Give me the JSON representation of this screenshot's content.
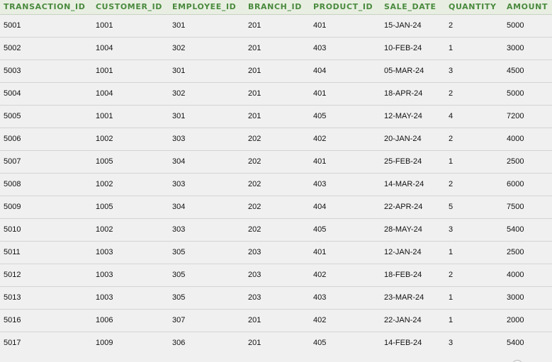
{
  "table": {
    "columns": [
      "TRANSACTION_ID",
      "CUSTOMER_ID",
      "EMPLOYEE_ID",
      "BRANCH_ID",
      "PRODUCT_ID",
      "SALE_DATE",
      "QUANTITY",
      "AMOUNT"
    ],
    "rows": [
      [
        "5001",
        "1001",
        "301",
        "201",
        "401",
        "15-JAN-24",
        "2",
        "5000"
      ],
      [
        "5002",
        "1004",
        "302",
        "201",
        "403",
        "10-FEB-24",
        "1",
        "3000"
      ],
      [
        "5003",
        "1001",
        "301",
        "201",
        "404",
        "05-MAR-24",
        "3",
        "4500"
      ],
      [
        "5004",
        "1004",
        "302",
        "201",
        "401",
        "18-APR-24",
        "2",
        "5000"
      ],
      [
        "5005",
        "1001",
        "301",
        "201",
        "405",
        "12-MAY-24",
        "4",
        "7200"
      ],
      [
        "5006",
        "1002",
        "303",
        "202",
        "402",
        "20-JAN-24",
        "2",
        "4000"
      ],
      [
        "5007",
        "1005",
        "304",
        "202",
        "401",
        "25-FEB-24",
        "1",
        "2500"
      ],
      [
        "5008",
        "1002",
        "303",
        "202",
        "403",
        "14-MAR-24",
        "2",
        "6000"
      ],
      [
        "5009",
        "1005",
        "304",
        "202",
        "404",
        "22-APR-24",
        "5",
        "7500"
      ],
      [
        "5010",
        "1002",
        "303",
        "202",
        "405",
        "28-MAY-24",
        "3",
        "5400"
      ],
      [
        "5011",
        "1003",
        "305",
        "203",
        "401",
        "12-JAN-24",
        "1",
        "2500"
      ],
      [
        "5012",
        "1003",
        "305",
        "203",
        "402",
        "18-FEB-24",
        "2",
        "4000"
      ],
      [
        "5013",
        "1003",
        "305",
        "203",
        "403",
        "23-MAR-24",
        "1",
        "3000"
      ],
      [
        "5016",
        "1006",
        "307",
        "201",
        "402",
        "22-JAN-24",
        "1",
        "2000"
      ],
      [
        "5017",
        "1009",
        "306",
        "201",
        "405",
        "14-FEB-24",
        "3",
        "5400"
      ]
    ]
  },
  "colors": {
    "header_text": "#4a8a3e",
    "header_background": "#e8efe2",
    "row_background": "#f0f0f0",
    "row_divider": "#d4d4d4"
  }
}
